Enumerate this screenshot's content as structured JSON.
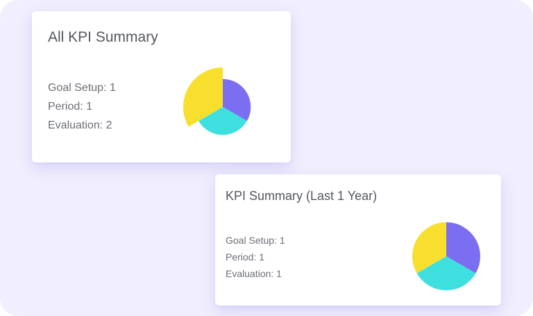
{
  "cards": [
    {
      "title": "All KPI Summary",
      "stats": [
        {
          "label": "Goal Setup",
          "value": "1"
        },
        {
          "label": "Period",
          "value": "1"
        },
        {
          "label": "Evaluation",
          "value": "2"
        }
      ]
    },
    {
      "title": "KPI Summary (Last 1 Year)",
      "stats": [
        {
          "label": "Goal Setup",
          "value": "1"
        },
        {
          "label": "Period",
          "value": "1"
        },
        {
          "label": "Evaluation",
          "value": "1"
        }
      ]
    }
  ],
  "chart_data": [
    {
      "type": "pie",
      "variant": "polar-area",
      "categories": [
        "Goal Setup",
        "Period",
        "Evaluation"
      ],
      "values": [
        1,
        1,
        2
      ],
      "colors": [
        "#7b6ef0",
        "#3ee0df",
        "#f8df2e"
      ]
    },
    {
      "type": "pie",
      "categories": [
        "Goal Setup",
        "Period",
        "Evaluation"
      ],
      "values": [
        1,
        1,
        1
      ],
      "colors": [
        "#7b6ef0",
        "#3ee0df",
        "#f8df2e"
      ]
    }
  ]
}
